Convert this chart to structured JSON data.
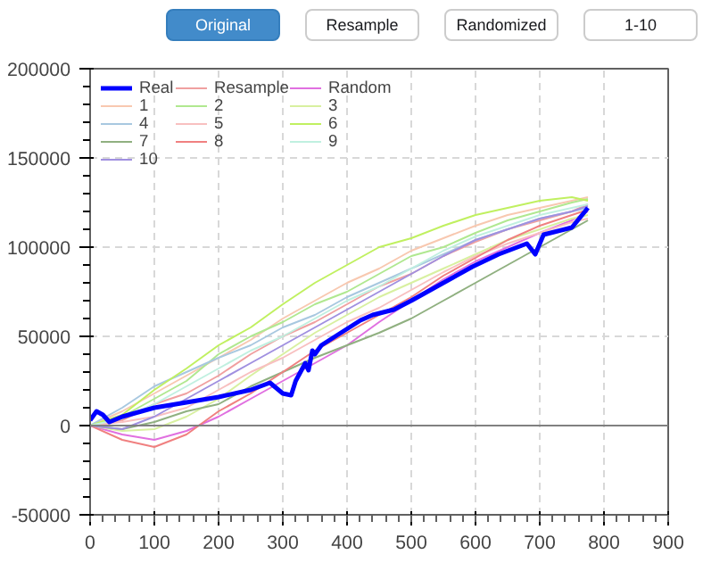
{
  "chart_data": {
    "type": "line",
    "annotations": [
      "Original",
      "Resample",
      "Randomized",
      "1-10"
    ],
    "xlim": [
      0,
      900
    ],
    "xticks": [
      0,
      100,
      200,
      300,
      400,
      500,
      600,
      700,
      800,
      900
    ],
    "ylim": [
      -50000,
      200000
    ],
    "yticks": [
      -50000,
      0,
      50000,
      100000,
      150000,
      200000
    ],
    "grid": true,
    "legend": "top left",
    "line_style": "solid",
    "marker": "none",
    "ref_lines": [
      {
        "axis": "y",
        "value": 0,
        "color": "#808080"
      }
    ],
    "series": [
      {
        "name": "Real",
        "color": "#0000ff",
        "x": [
          0,
          10,
          20,
          30,
          50,
          100,
          150,
          200,
          250,
          280,
          300,
          313,
          320,
          335,
          340,
          346,
          350,
          360,
          421,
          440,
          473,
          500,
          525,
          560,
          595,
          636,
          680,
          693,
          706,
          750,
          775
        ],
        "values": [
          3000,
          8000,
          6000,
          2000,
          5000,
          10000,
          13000,
          16000,
          20000,
          24000,
          18000,
          17000,
          25000,
          35000,
          31000,
          42000,
          40000,
          45000,
          59000,
          62000,
          65000,
          70000,
          75000,
          82000,
          89000,
          96000,
          102000,
          96000,
          107000,
          111000,
          122000
        ]
      },
      {
        "name": "Resample",
        "color": "#f0a0a0",
        "values": [
          0,
          3000,
          12000,
          18000,
          28000,
          40000,
          50000,
          58000,
          68000,
          78000,
          85000,
          95000,
          103000,
          110000,
          115000,
          120000,
          124000
        ]
      },
      {
        "name": "Random",
        "color": "#e070e0",
        "values": [
          0,
          -5000,
          -8000,
          -3000,
          5000,
          15000,
          25000,
          35000,
          45000,
          58000,
          70000,
          82000,
          92000,
          100000,
          108000,
          115000,
          120000
        ]
      },
      {
        "name": "1",
        "color": "#f8c8b0",
        "values": [
          0,
          8000,
          18000,
          28000,
          38000,
          48000,
          60000,
          70000,
          80000,
          88000,
          98000,
          105000,
          112000,
          118000,
          122000,
          126000,
          128000
        ]
      },
      {
        "name": "2",
        "color": "#b0e890",
        "values": [
          0,
          5000,
          15000,
          25000,
          40000,
          50000,
          58000,
          68000,
          75000,
          85000,
          95000,
          100000,
          108000,
          115000,
          120000,
          125000,
          127000
        ]
      },
      {
        "name": "3",
        "color": "#d8f0a0",
        "values": [
          0,
          -3000,
          -2000,
          5000,
          15000,
          28000,
          40000,
          52000,
          62000,
          72000,
          80000,
          88000,
          96000,
          104000,
          110000,
          116000,
          118000
        ]
      },
      {
        "name": "4",
        "color": "#a8c8e0",
        "values": [
          0,
          10000,
          22000,
          30000,
          38000,
          45000,
          55000,
          62000,
          72000,
          80000,
          88000,
          96000,
          104000,
          110000,
          116000,
          120000,
          122000
        ]
      },
      {
        "name": "5",
        "color": "#f8c0c0",
        "values": [
          0,
          2000,
          5000,
          10000,
          20000,
          30000,
          38000,
          48000,
          58000,
          66000,
          76000,
          86000,
          95000,
          102000,
          108000,
          114000,
          116000
        ]
      },
      {
        "name": "6",
        "color": "#c0f060",
        "values": [
          0,
          6000,
          20000,
          32000,
          45000,
          55000,
          68000,
          80000,
          90000,
          100000,
          105000,
          112000,
          118000,
          122000,
          126000,
          128000,
          126000
        ]
      },
      {
        "name": "7",
        "color": "#90b080",
        "values": [
          0,
          -2000,
          2000,
          8000,
          12000,
          22000,
          30000,
          38000,
          45000,
          52000,
          60000,
          70000,
          80000,
          90000,
          100000,
          110000,
          115000
        ]
      },
      {
        "name": "8",
        "color": "#f08080",
        "values": [
          0,
          -8000,
          -12000,
          -5000,
          8000,
          18000,
          30000,
          42000,
          52000,
          62000,
          72000,
          84000,
          94000,
          104000,
          112000,
          118000,
          121000
        ]
      },
      {
        "name": "9",
        "color": "#c0f0e0",
        "values": [
          0,
          4000,
          12000,
          22000,
          32000,
          42000,
          50000,
          60000,
          70000,
          78000,
          88000,
          98000,
          106000,
          112000,
          118000,
          122000,
          124000
        ]
      },
      {
        "name": "10",
        "color": "#a090e0",
        "values": [
          0,
          -2000,
          5000,
          15000,
          25000,
          35000,
          45000,
          55000,
          65000,
          75000,
          85000,
          95000,
          104000,
          110000,
          116000,
          120000,
          123000
        ]
      }
    ],
    "x": [
      0,
      50,
      100,
      150,
      200,
      250,
      300,
      350,
      400,
      450,
      500,
      550,
      600,
      650,
      700,
      750,
      775
    ]
  }
}
